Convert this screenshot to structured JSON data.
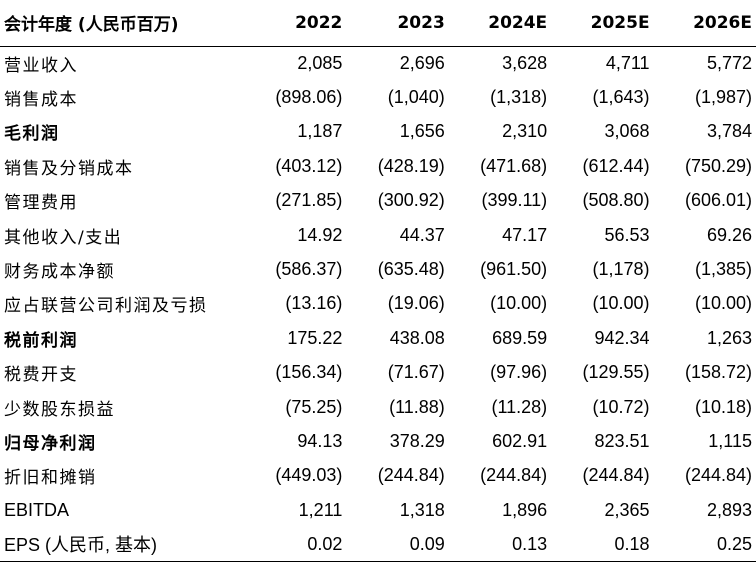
{
  "table": {
    "header": {
      "label": "会计年度 (人民币百万)",
      "years": [
        "2022",
        "2023",
        "2024E",
        "2025E",
        "2026E"
      ]
    },
    "rows": [
      {
        "label": "营业收入",
        "values": [
          "2,085",
          "2,696",
          "3,628",
          "4,711",
          "5,772"
        ],
        "bold": false
      },
      {
        "label": "销售成本",
        "values": [
          "(898.06)",
          "(1,040)",
          "(1,318)",
          "(1,643)",
          "(1,987)"
        ],
        "bold": false
      },
      {
        "label": "毛利润",
        "values": [
          "1,187",
          "1,656",
          "2,310",
          "3,068",
          "3,784"
        ],
        "bold": true
      },
      {
        "label": "销售及分销成本",
        "values": [
          "(403.12)",
          "(428.19)",
          "(471.68)",
          "(612.44)",
          "(750.29)"
        ],
        "bold": false
      },
      {
        "label": "管理费用",
        "values": [
          "(271.85)",
          "(300.92)",
          "(399.11)",
          "(508.80)",
          "(606.01)"
        ],
        "bold": false
      },
      {
        "label": "其他收入/支出",
        "values": [
          "14.92",
          "44.37",
          "47.17",
          "56.53",
          "69.26"
        ],
        "bold": false
      },
      {
        "label": "财务成本净额",
        "values": [
          "(586.37)",
          "(635.48)",
          "(961.50)",
          "(1,178)",
          "(1,385)"
        ],
        "bold": false
      },
      {
        "label": "应占联营公司利润及亏损",
        "values": [
          "(13.16)",
          "(19.06)",
          "(10.00)",
          "(10.00)",
          "(10.00)"
        ],
        "bold": false
      },
      {
        "label": "税前利润",
        "values": [
          "175.22",
          "438.08",
          "689.59",
          "942.34",
          "1,263"
        ],
        "bold": true
      },
      {
        "label": "税费开支",
        "values": [
          "(156.34)",
          "(71.67)",
          "(97.96)",
          "(129.55)",
          "(158.72)"
        ],
        "bold": false
      },
      {
        "label": "少数股东损益",
        "values": [
          "(75.25)",
          "(11.88)",
          "(11.28)",
          "(10.72)",
          "(10.18)"
        ],
        "bold": false
      },
      {
        "label": "归母净利润",
        "values": [
          "94.13",
          "378.29",
          "602.91",
          "823.51",
          "1,115"
        ],
        "bold": true
      },
      {
        "label": "折旧和摊销",
        "values": [
          "(449.03)",
          "(244.84)",
          "(244.84)",
          "(244.84)",
          "(244.84)"
        ],
        "bold": false
      },
      {
        "label": "EBITDA",
        "values": [
          "1,211",
          "1,318",
          "1,896",
          "2,365",
          "2,893"
        ],
        "bold": false
      },
      {
        "label": "EPS (人民币, 基本)",
        "values": [
          "0.02",
          "0.09",
          "0.13",
          "0.18",
          "0.25"
        ],
        "bold": false
      }
    ]
  }
}
